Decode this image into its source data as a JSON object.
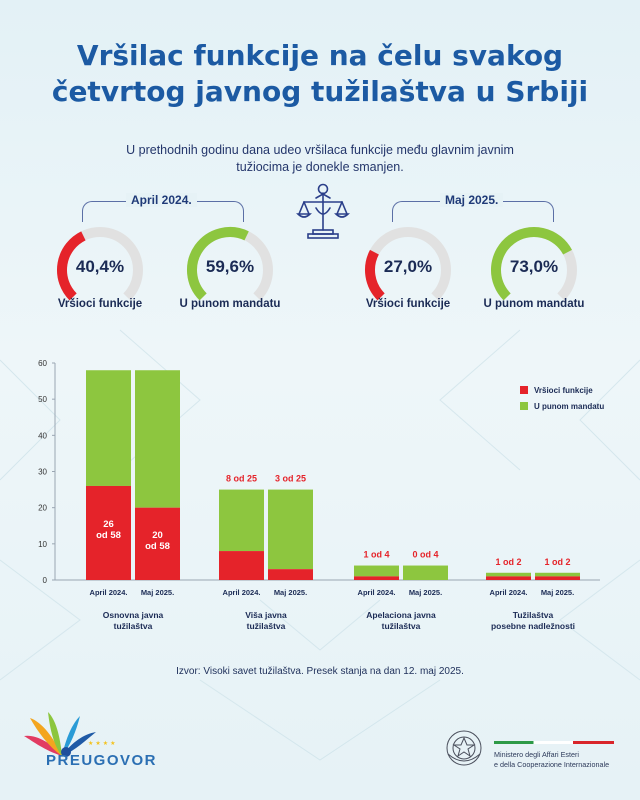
{
  "title_line1": "Vršilac funkcije na čelu svakog",
  "title_line2": "četvrtog javnog tužilaštva u Srbiji",
  "subtitle": "U prethodnih godinu dana udeo vršilaca funkcije među glavnim javnim tužiocima je donekle smanjen.",
  "periods": [
    {
      "label": "April 2024.",
      "gauges": [
        {
          "value_text": "40,4%",
          "value": 40.4,
          "caption": "Vršioci funkcije",
          "color": "#e5232a"
        },
        {
          "value_text": "59,6%",
          "value": 59.6,
          "caption": "U punom mandatu",
          "color": "#8dc63f"
        }
      ]
    },
    {
      "label": "Maj 2025.",
      "gauges": [
        {
          "value_text": "27,0%",
          "value": 27.0,
          "caption": "Vršioci funkcije",
          "color": "#e5232a"
        },
        {
          "value_text": "73,0%",
          "value": 73.0,
          "caption": "U punom mandatu",
          "color": "#8dc63f"
        }
      ]
    }
  ],
  "chart_data": {
    "type": "bar",
    "stacked": true,
    "ylim": [
      0,
      60
    ],
    "yticks": [
      0,
      10,
      20,
      30,
      40,
      50,
      60
    ],
    "groups": [
      {
        "label_line1": "Osnovna javna",
        "label_line2": "tužilaštva",
        "bars": [
          {
            "x": "April 2024.",
            "acting": 26,
            "full": 32,
            "label": "26 od 58",
            "label_inside": true
          },
          {
            "x": "Maj 2025.",
            "acting": 20,
            "full": 38,
            "label": "20 od 58",
            "label_inside": true
          }
        ]
      },
      {
        "label_line1": "Viša javna",
        "label_line2": "tužilaštva",
        "bars": [
          {
            "x": "April 2024.",
            "acting": 8,
            "full": 17,
            "label": "8 od 25",
            "label_inside": false
          },
          {
            "x": "Maj 2025.",
            "acting": 3,
            "full": 22,
            "label": "3 od 25",
            "label_inside": false
          }
        ]
      },
      {
        "label_line1": "Apelaciona javna",
        "label_line2": "tužilaštva",
        "bars": [
          {
            "x": "April 2024.",
            "acting": 1,
            "full": 3,
            "label": "1 od 4",
            "label_inside": false
          },
          {
            "x": "Maj 2025.",
            "acting": 0,
            "full": 4,
            "label": "0 od 4",
            "label_inside": false
          }
        ]
      },
      {
        "label_line1": "Tužilaštva",
        "label_line2": "posebne nadležnosti",
        "bars": [
          {
            "x": "April 2024.",
            "acting": 1,
            "full": 1,
            "label": "1 od 2",
            "label_inside": false
          },
          {
            "x": "Maj 2025.",
            "acting": 1,
            "full": 1,
            "label": "1 od 2",
            "label_inside": false
          }
        ]
      }
    ],
    "legend": [
      {
        "name": "Vršioci funkcije",
        "color": "#e5232a"
      },
      {
        "name": "U punom mandatu",
        "color": "#8dc63f"
      }
    ],
    "legend_position": "top-right"
  },
  "source": "Izvor: Visoki savet tužilaštva. Presek stanja na dan 12. maj 2025.",
  "footer": {
    "brand": "PREUGOVOR",
    "ministry_line1": "Ministero degli Affari Esteri",
    "ministry_line2": "e della Cooperazione Internazionale"
  },
  "colors": {
    "accent": "#1c5aa3",
    "gauge_track": "#e1e1e1"
  }
}
